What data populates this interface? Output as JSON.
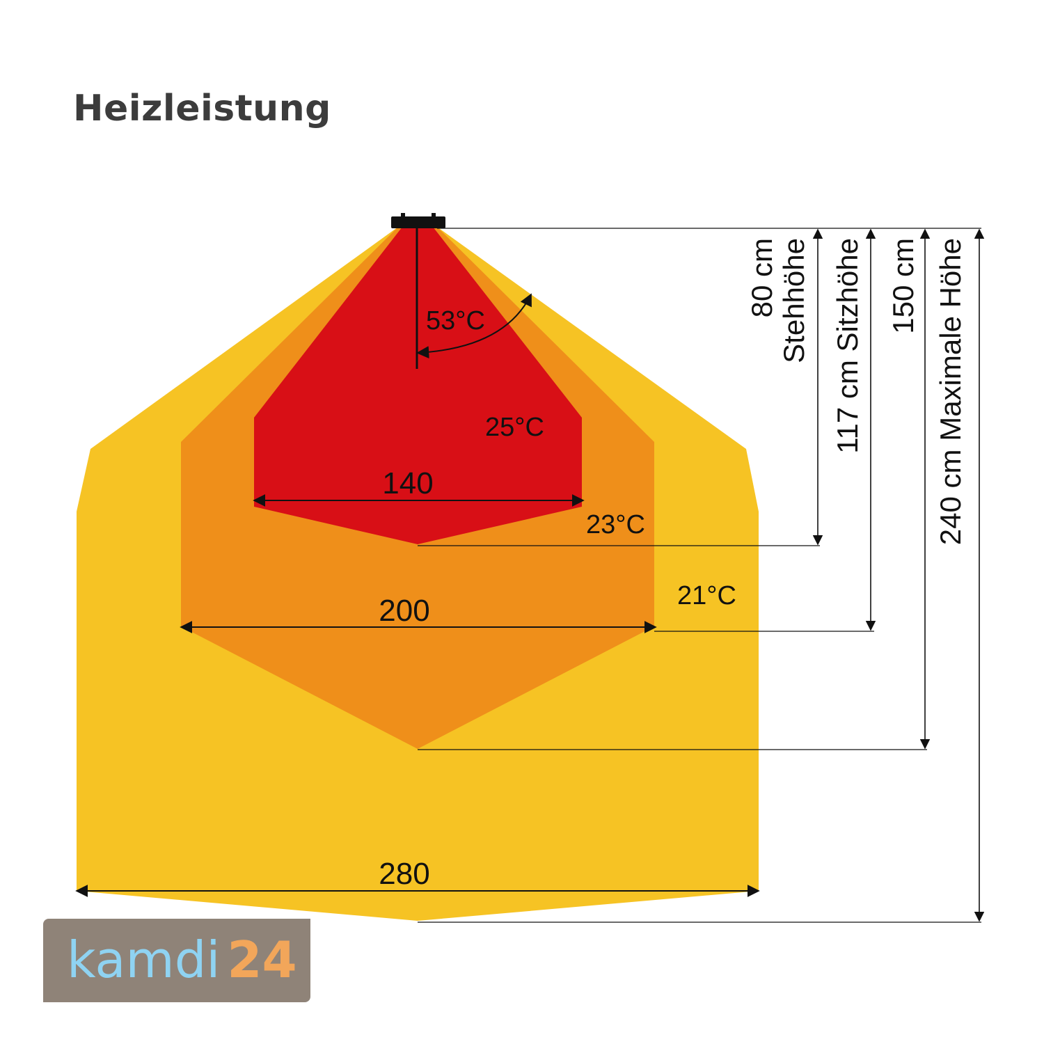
{
  "title": "Heizleistung",
  "colors": {
    "zone_outer": "#f6c324",
    "zone_middle": "#ef8f1a",
    "zone_inner": "#d80f16",
    "logo_bg": "#8f8378",
    "logo_word": "#8fd3f2",
    "logo_num": "#f2a65a"
  },
  "zones": [
    {
      "temp": "53°C"
    },
    {
      "temp": "25°C"
    },
    {
      "temp": "23°C"
    },
    {
      "temp": "21°C"
    }
  ],
  "widths": [
    {
      "label": "140"
    },
    {
      "label": "200"
    },
    {
      "label": "280"
    }
  ],
  "heights": [
    {
      "value": "80 cm",
      "name": "Stehhöhe"
    },
    {
      "value": "117 cm Sitzhöhe"
    },
    {
      "value": "150 cm"
    },
    {
      "value": "240 cm Maximale Höhe"
    }
  ],
  "logo": {
    "word": "kamdi",
    "number": "24"
  }
}
